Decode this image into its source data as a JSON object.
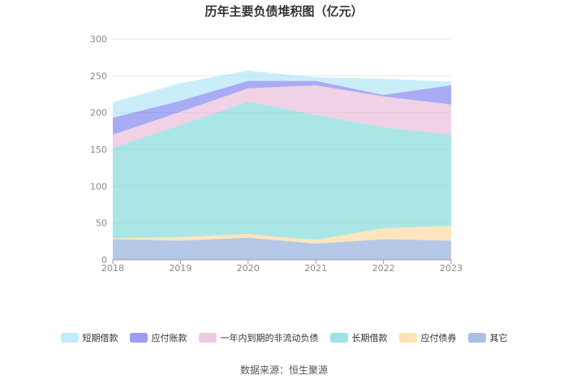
{
  "chart_data": {
    "type": "area",
    "title": "历年主要负债堆积图（亿元）",
    "categories": [
      "2018",
      "2019",
      "2020",
      "2021",
      "2022",
      "2023"
    ],
    "ylim": [
      0,
      300
    ],
    "yticks": [
      0,
      50,
      100,
      150,
      200,
      250,
      300
    ],
    "stacked": true,
    "grid": true,
    "legend_position": "bottom",
    "series": [
      {
        "name": "其它",
        "color": "#8faadc",
        "values": [
          28,
          26,
          30,
          22,
          28,
          26
        ]
      },
      {
        "name": "应付债券",
        "color": "#ffd79a",
        "values": [
          1,
          5,
          5,
          5,
          15,
          20
        ]
      },
      {
        "name": "长期借款",
        "color": "#7dd8d8",
        "values": [
          123,
          152,
          180,
          170,
          137,
          124
        ]
      },
      {
        "name": "一年内到期的非流动负债",
        "color": "#e8b8d8",
        "values": [
          18,
          18,
          18,
          40,
          42,
          41
        ]
      },
      {
        "name": "应付账款",
        "color": "#7b7ef0",
        "values": [
          23,
          15,
          10,
          6,
          2,
          26
        ]
      },
      {
        "name": "短期借款",
        "color": "#aee4f8",
        "values": [
          21,
          24,
          14,
          5,
          22,
          5
        ]
      }
    ],
    "legend_order": [
      "短期借款",
      "应付账款",
      "一年内到期的非流动负债",
      "长期借款",
      "应付债券",
      "其它"
    ]
  },
  "source_text": "数据来源：恒生聚源"
}
